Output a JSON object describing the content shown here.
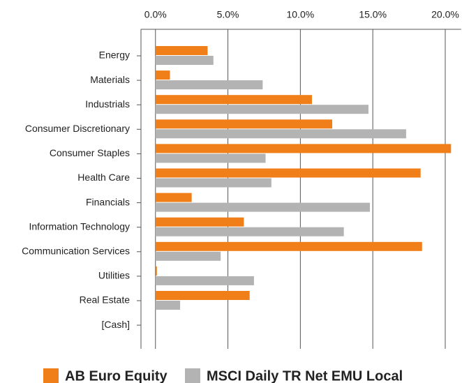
{
  "chart_data": {
    "type": "hbar",
    "categories": [
      "Energy",
      "Materials",
      "Industrials",
      "Consumer Discretionary",
      "Consumer Staples",
      "Health Care",
      "Financials",
      "Information Technology",
      "Communication Services",
      "Utilities",
      "Real Estate",
      "[Cash]"
    ],
    "series": [
      {
        "name": "AB Euro Equity",
        "color": "#f07f1a",
        "values": [
          3.6,
          1.0,
          10.8,
          12.2,
          20.4,
          18.3,
          2.5,
          6.1,
          18.4,
          0.1,
          6.5,
          0.0
        ]
      },
      {
        "name": "MSCI Daily TR Net EMU Local",
        "color": "#b3b3b3",
        "values": [
          4.0,
          7.4,
          14.7,
          17.3,
          7.6,
          8.0,
          14.8,
          13.0,
          4.5,
          6.8,
          1.7,
          0.0
        ]
      }
    ],
    "xlim": [
      -1,
      21
    ],
    "xticks": [
      {
        "value": 0,
        "label": "0.0%"
      },
      {
        "value": 5,
        "label": "5.0%"
      },
      {
        "value": 10,
        "label": "10.0%"
      },
      {
        "value": 15,
        "label": "15.0%"
      },
      {
        "value": 20,
        "label": "20.0%"
      }
    ],
    "grid": true,
    "legend": "bottom"
  }
}
